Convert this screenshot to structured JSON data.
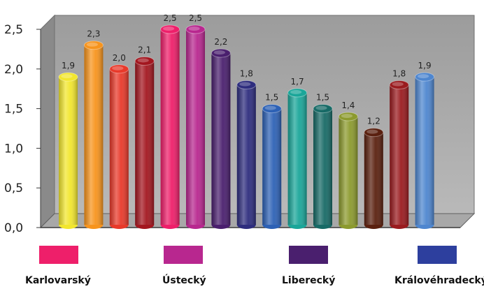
{
  "chart_data": {
    "type": "bar",
    "title": "",
    "xlabel": "",
    "ylabel": "",
    "ylim": [
      0,
      2.5
    ],
    "yticks": [
      "0,0",
      "0,5",
      "1,0",
      "1,5",
      "2,0",
      "2,5"
    ],
    "grid": false,
    "values": [
      1.9,
      2.3,
      2.0,
      2.1,
      2.5,
      2.5,
      2.2,
      1.8,
      1.5,
      1.7,
      1.5,
      1.4,
      1.2,
      1.8,
      1.9
    ],
    "data_labels": [
      "1,9",
      "2,3",
      "2,0",
      "2,1",
      "2,5",
      "2,5",
      "2,2",
      "1,8",
      "1,5",
      "1,7",
      "1,5",
      "1,4",
      "1,2",
      "1,8",
      "1,9"
    ],
    "bar_colors": [
      "#f2e62e",
      "#f7941d",
      "#e8392a",
      "#a3161f",
      "#ee1f6a",
      "#b8278f",
      "#4a1f6e",
      "#2e2d7e",
      "#2d61b5",
      "#1aa699",
      "#176a66",
      "#8c9a2e",
      "#5a200f",
      "#9a1b1f",
      "#4e86cf"
    ],
    "legend_position": "bottom",
    "legend": [
      {
        "label": "Karlovarský",
        "color": "#ee1f6a"
      },
      {
        "label": "Ústecký",
        "color": "#b8278f"
      },
      {
        "label": "Liberecký",
        "color": "#4a1f6e"
      },
      {
        "label": "Královéhradecký",
        "color": "#2d3f9e"
      }
    ]
  }
}
